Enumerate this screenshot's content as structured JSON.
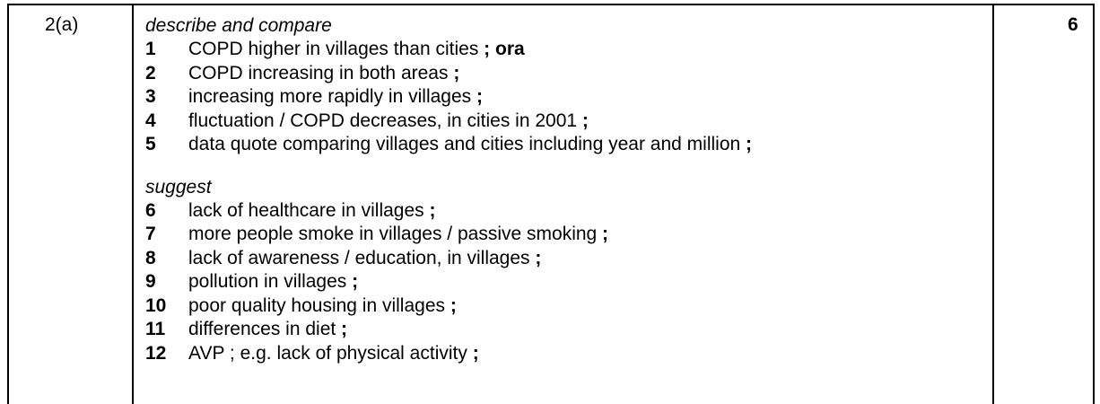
{
  "question": "2(a)",
  "marks": "6",
  "sections": [
    {
      "heading": "describe and compare",
      "items": [
        {
          "num": "1",
          "text": "COPD higher in villages than cities",
          "suffix": " ; ora"
        },
        {
          "num": "2",
          "text": "COPD increasing in both areas",
          "suffix": " ;"
        },
        {
          "num": "3",
          "text": "increasing more rapidly in villages",
          "suffix": " ;"
        },
        {
          "num": "4",
          "text": "fluctuation / COPD decreases, in cities in 2001",
          "suffix": " ;"
        },
        {
          "num": "5",
          "text": "data quote comparing villages and cities including year and million",
          "suffix": " ;"
        }
      ]
    },
    {
      "heading": "suggest",
      "items": [
        {
          "num": "6",
          "text": "lack of healthcare in villages",
          "suffix": " ;"
        },
        {
          "num": "7",
          "text": "more people smoke in villages / passive smoking",
          "suffix": " ;"
        },
        {
          "num": "8",
          "text": "lack of awareness / education, in villages",
          "suffix": " ;"
        },
        {
          "num": "9",
          "text": "pollution in villages",
          "suffix": " ;"
        },
        {
          "num": "10",
          "text": "poor quality housing in villages",
          "suffix": " ;"
        },
        {
          "num": "11",
          "text": "differences in diet",
          "suffix": " ;"
        },
        {
          "num": "12",
          "text": "AVP ; e.g. lack of physical activity",
          "suffix": " ;"
        }
      ]
    }
  ]
}
